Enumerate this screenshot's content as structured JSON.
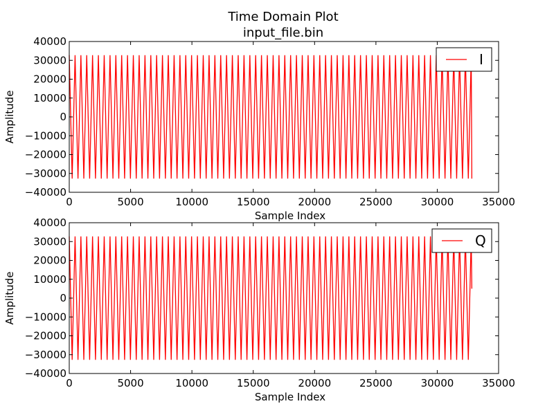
{
  "figure": {
    "title": "Time Domain Plot",
    "subtitle": "input_file.bin"
  },
  "chart_data": [
    {
      "type": "line",
      "legend_placement": "top-right",
      "xlabel": "Sample Index",
      "ylabel": "Amplitude",
      "xlim": [
        0,
        35000
      ],
      "ylim": [
        -40000,
        40000
      ],
      "xticks": [
        "0",
        "5000",
        "10000",
        "15000",
        "20000",
        "25000",
        "30000",
        "35000"
      ],
      "yticks": [
        "40000",
        "30000",
        "20000",
        "10000",
        "0",
        "−10000",
        "−20000",
        "−30000",
        "−40000"
      ],
      "grid": false,
      "series": [
        {
          "name": "I",
          "color": "#ff0000",
          "x_start": 0,
          "x_end": 32768,
          "amplitude": 32767,
          "cycles": 69,
          "start_value": 32767,
          "end_value": -32767
        }
      ]
    },
    {
      "type": "line",
      "legend_placement": "top-right",
      "xlabel": "Sample Index",
      "ylabel": "Amplitude",
      "xlim": [
        0,
        35000
      ],
      "ylim": [
        -40000,
        40000
      ],
      "xticks": [
        "0",
        "5000",
        "10000",
        "15000",
        "20000",
        "25000",
        "30000",
        "35000"
      ],
      "yticks": [
        "40000",
        "30000",
        "20000",
        "10000",
        "0",
        "−10000",
        "−20000",
        "−30000",
        "−40000"
      ],
      "grid": false,
      "series": [
        {
          "name": "Q",
          "color": "#ff0000",
          "x_start": 0,
          "x_end": 32768,
          "amplitude": 32767,
          "cycles": 69,
          "start_value": 32767,
          "end_value": 5000
        }
      ]
    }
  ]
}
